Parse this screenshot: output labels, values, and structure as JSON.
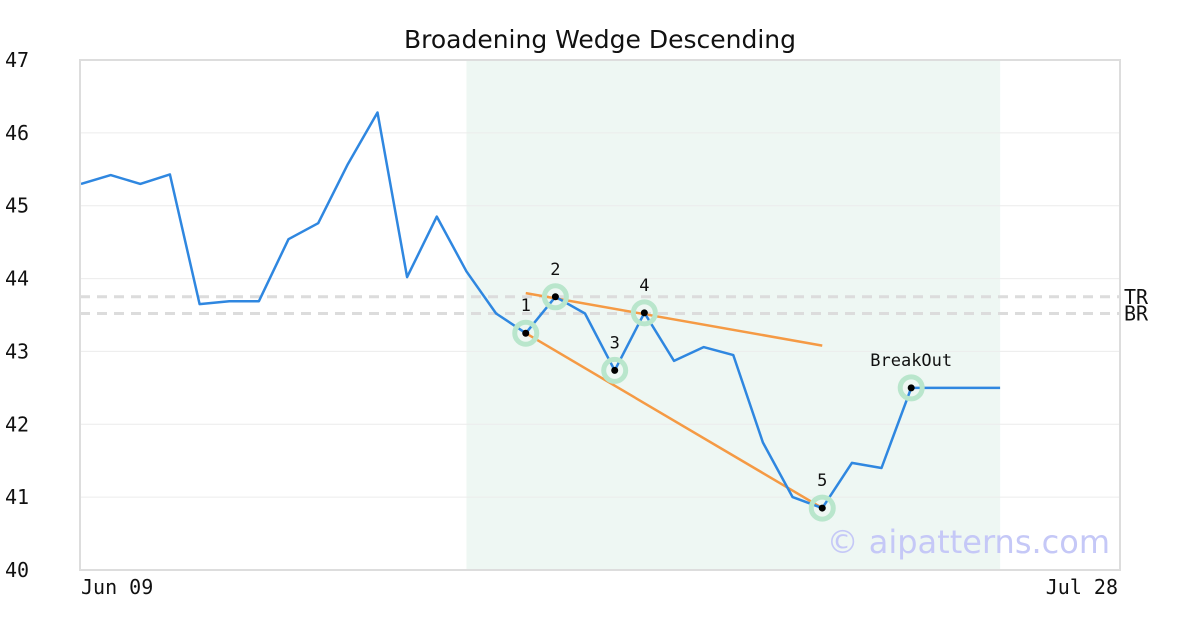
{
  "chart_data": {
    "type": "line",
    "title": "Broadening Wedge Descending",
    "xlabel": "",
    "ylabel": "",
    "ylim": [
      40,
      47
    ],
    "yticks": [
      40,
      41,
      42,
      43,
      44,
      45,
      46,
      47
    ],
    "xtick_labels": [
      "Jun 09",
      "Jul 28"
    ],
    "grid": true,
    "watermark": "© aipatterns.com",
    "series": [
      {
        "color": "#2f87e0",
        "values": [
          45.3,
          45.42,
          45.3,
          45.43,
          43.65,
          43.69,
          43.69,
          44.54,
          44.76,
          45.57,
          46.28,
          44.02,
          44.85,
          44.1,
          43.52,
          43.25,
          43.75,
          43.52,
          42.74,
          43.53,
          42.87,
          43.06,
          42.95,
          41.75,
          41.0,
          40.85,
          41.47,
          41.4,
          42.5,
          42.5,
          42.5,
          42.5
        ]
      }
    ],
    "pattern_region": {
      "start_index": 13,
      "end_index": 31,
      "color": "#eef7f3"
    },
    "pattern_points": [
      {
        "label": "1",
        "index": 15,
        "value": 43.25
      },
      {
        "label": "2",
        "index": 16,
        "value": 43.75
      },
      {
        "label": "3",
        "index": 18,
        "value": 42.74
      },
      {
        "label": "4",
        "index": 19,
        "value": 43.53
      },
      {
        "label": "5",
        "index": 25,
        "value": 40.85
      },
      {
        "label": "BreakOut",
        "index": 28,
        "value": 42.5
      }
    ],
    "trend_lines": [
      {
        "from_index": 15,
        "from_value": 43.8,
        "to_index": 25,
        "to_value": 43.08,
        "color": "#f59a44"
      },
      {
        "from_index": 15,
        "from_value": 43.25,
        "to_index": 25,
        "to_value": 40.85,
        "color": "#f59a44"
      }
    ],
    "levels": [
      {
        "label": "TR",
        "value": 43.75
      },
      {
        "label": "BR",
        "value": 43.52
      }
    ]
  }
}
